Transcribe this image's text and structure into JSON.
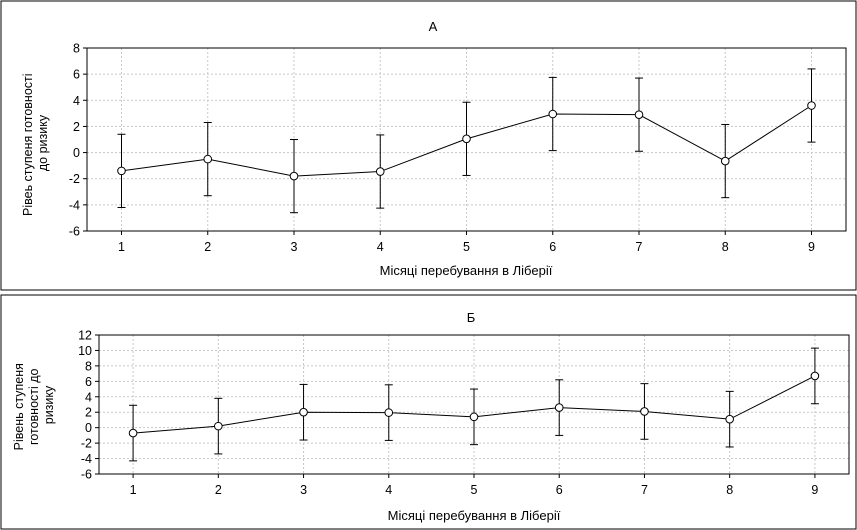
{
  "chart_data": [
    {
      "type": "line",
      "title": "А",
      "xlabel": "Місяці перебування в Ліберії",
      "ylabel_lines": [
        "Рівеь ступеня готовності",
        "до ризику"
      ],
      "x": [
        1,
        2,
        3,
        4,
        5,
        6,
        7,
        8,
        9
      ],
      "xticks": [
        "1",
        "2",
        "3",
        "4",
        "5",
        "6",
        "7",
        "8",
        "9"
      ],
      "xlim": [
        0.6,
        9.4
      ],
      "ylim": [
        -6,
        8
      ],
      "yticks": [
        -6,
        -4,
        -2,
        0,
        2,
        4,
        6,
        8
      ],
      "grid": true,
      "values": [
        -1.4,
        -0.5,
        -1.8,
        -1.45,
        1.05,
        2.95,
        2.9,
        -0.65,
        3.6
      ],
      "error_low": [
        -4.2,
        -3.3,
        -4.6,
        -4.25,
        -1.75,
        0.15,
        0.1,
        -3.45,
        0.8
      ],
      "error_high": [
        1.4,
        2.3,
        1.0,
        1.35,
        3.85,
        5.75,
        5.7,
        2.15,
        6.4
      ]
    },
    {
      "type": "line",
      "title": "Б",
      "xlabel": "Місяці перебування в Ліберії",
      "ylabel_lines": [
        "Рівень ступеня",
        "готовності до",
        "ризику"
      ],
      "x": [
        1,
        2,
        3,
        4,
        5,
        6,
        7,
        8,
        9
      ],
      "xticks": [
        "1",
        "2",
        "3",
        "4",
        "5",
        "6",
        "7",
        "8",
        "9"
      ],
      "xlim": [
        0.6,
        9.4
      ],
      "ylim": [
        -6,
        12
      ],
      "yticks": [
        -6,
        -4,
        -2,
        0,
        2,
        4,
        6,
        8,
        10,
        12
      ],
      "grid": true,
      "values": [
        -0.7,
        0.2,
        2.0,
        1.95,
        1.4,
        2.6,
        2.1,
        1.1,
        6.7
      ],
      "error_low": [
        -4.3,
        -3.4,
        -1.6,
        -1.65,
        -2.2,
        -1.0,
        -1.5,
        -2.5,
        3.1
      ],
      "error_high": [
        2.9,
        3.8,
        5.6,
        5.55,
        5.0,
        6.2,
        5.7,
        4.7,
        10.3
      ]
    }
  ]
}
